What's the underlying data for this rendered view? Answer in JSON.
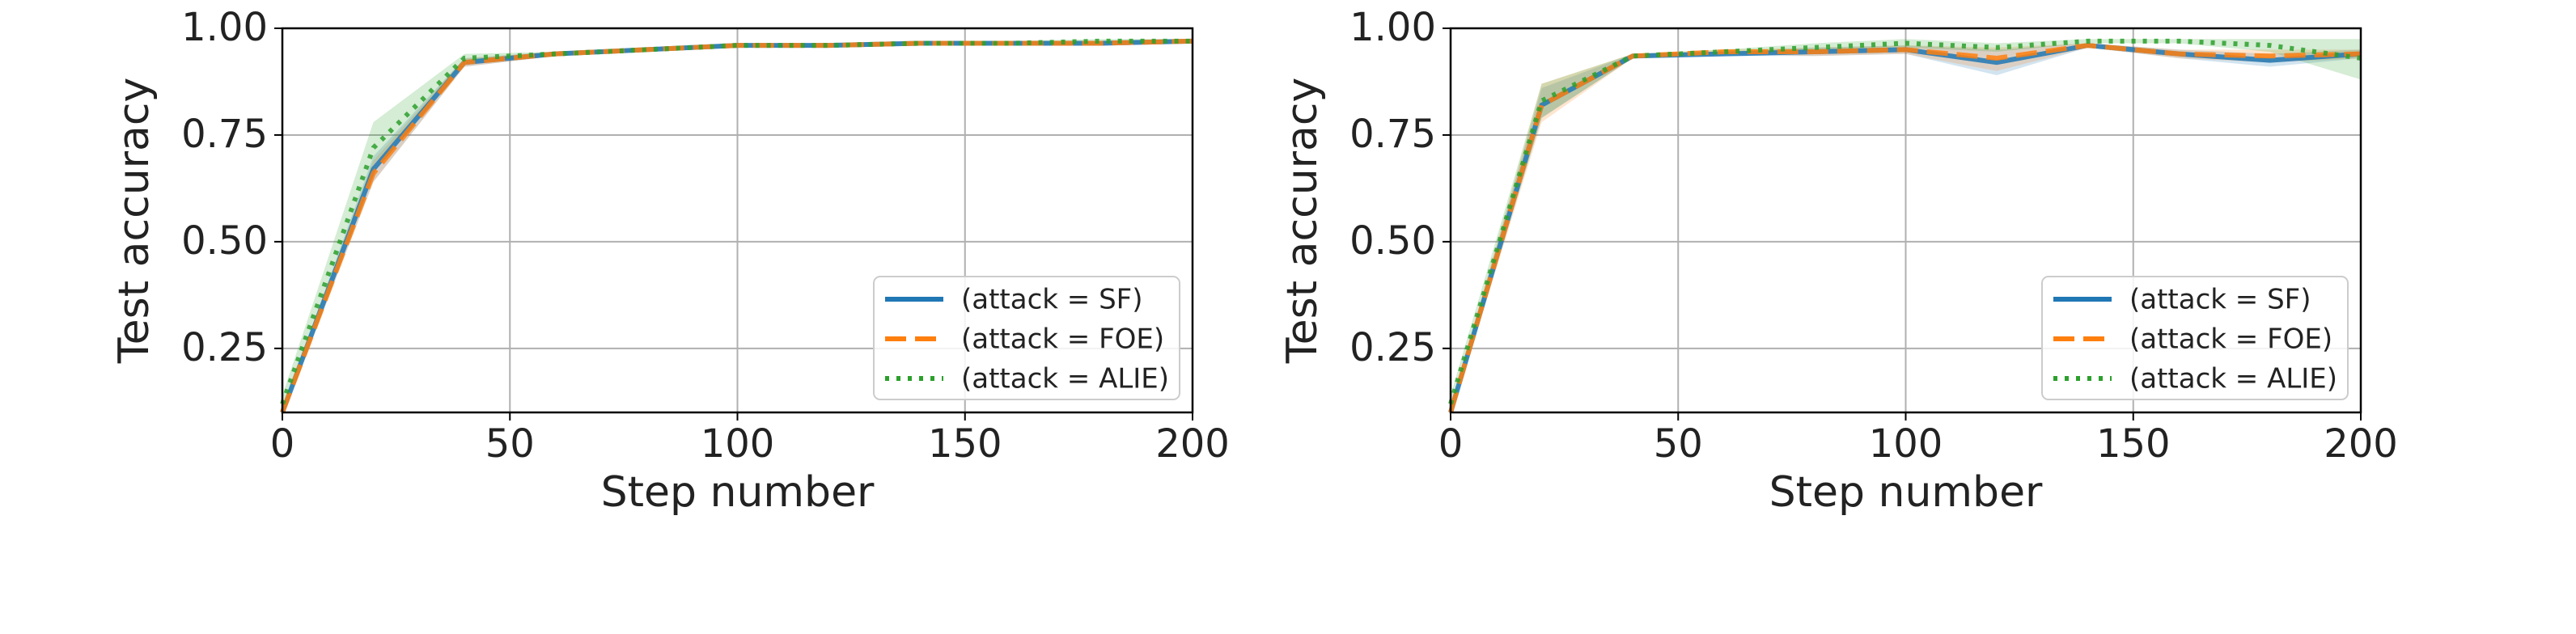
{
  "chart_data": [
    {
      "type": "line",
      "xlabel": "Step number",
      "ylabel": "Test accuracy",
      "xlim": [
        0,
        200
      ],
      "ylim": [
        0.1,
        1.0
      ],
      "xticks": [
        0,
        50,
        100,
        150,
        200
      ],
      "yticks": [
        0.25,
        {
          "value": 0.5,
          "label": "0.50"
        },
        0.75,
        {
          "value": 1.0,
          "label": "1.00"
        }
      ],
      "grid": true,
      "legend": "lower right",
      "x": [
        0,
        20,
        40,
        60,
        80,
        100,
        120,
        140,
        160,
        180,
        200
      ],
      "series": [
        {
          "name": "(attack = SF)",
          "color": "#1f77b4",
          "dash": "solid",
          "values": [
            0.1,
            0.67,
            0.92,
            0.94,
            0.95,
            0.96,
            0.96,
            0.965,
            0.965,
            0.965,
            0.97
          ],
          "lower": [
            0.09,
            0.64,
            0.91,
            0.935,
            0.945,
            0.955,
            0.955,
            0.96,
            0.96,
            0.96,
            0.965
          ],
          "upper": [
            0.11,
            0.7,
            0.93,
            0.945,
            0.955,
            0.965,
            0.965,
            0.97,
            0.97,
            0.97,
            0.975
          ]
        },
        {
          "name": "(attack = FOE)",
          "color": "#ff7f0e",
          "dash": "dashed",
          "values": [
            0.1,
            0.66,
            0.92,
            0.94,
            0.95,
            0.96,
            0.96,
            0.965,
            0.965,
            0.965,
            0.97
          ],
          "lower": [
            0.09,
            0.64,
            0.91,
            0.935,
            0.945,
            0.955,
            0.955,
            0.96,
            0.96,
            0.96,
            0.965
          ],
          "upper": [
            0.11,
            0.69,
            0.93,
            0.945,
            0.955,
            0.965,
            0.965,
            0.97,
            0.97,
            0.97,
            0.975
          ]
        },
        {
          "name": "(attack = ALIE)",
          "color": "#2ca02c",
          "dash": "dotted",
          "values": [
            0.12,
            0.72,
            0.93,
            0.94,
            0.95,
            0.96,
            0.96,
            0.965,
            0.965,
            0.97,
            0.97
          ],
          "lower": [
            0.1,
            0.68,
            0.92,
            0.935,
            0.945,
            0.955,
            0.955,
            0.96,
            0.96,
            0.965,
            0.965
          ],
          "upper": [
            0.14,
            0.78,
            0.94,
            0.945,
            0.955,
            0.965,
            0.965,
            0.97,
            0.97,
            0.975,
            0.975
          ]
        }
      ]
    },
    {
      "type": "line",
      "xlabel": "Step number",
      "ylabel": "Test accuracy",
      "xlim": [
        0,
        200
      ],
      "ylim": [
        0.1,
        1.0
      ],
      "xticks": [
        0,
        50,
        100,
        150,
        200
      ],
      "yticks": [
        0.25,
        {
          "value": 0.5,
          "label": "0.50"
        },
        0.75,
        {
          "value": 1.0,
          "label": "1.00"
        }
      ],
      "grid": true,
      "legend": "lower right",
      "x": [
        0,
        20,
        40,
        60,
        80,
        100,
        120,
        140,
        160,
        180,
        200
      ],
      "series": [
        {
          "name": "(attack = SF)",
          "color": "#1f77b4",
          "dash": "solid",
          "values": [
            0.1,
            0.82,
            0.935,
            0.94,
            0.945,
            0.95,
            0.92,
            0.96,
            0.94,
            0.925,
            0.94
          ],
          "lower": [
            0.09,
            0.79,
            0.93,
            0.935,
            0.935,
            0.94,
            0.89,
            0.955,
            0.93,
            0.91,
            0.93
          ],
          "upper": [
            0.11,
            0.86,
            0.94,
            0.945,
            0.955,
            0.96,
            0.95,
            0.965,
            0.95,
            0.94,
            0.95
          ]
        },
        {
          "name": "(attack = FOE)",
          "color": "#ff7f0e",
          "dash": "dashed",
          "values": [
            0.1,
            0.82,
            0.935,
            0.945,
            0.945,
            0.95,
            0.93,
            0.96,
            0.94,
            0.935,
            0.94
          ],
          "lower": [
            0.09,
            0.78,
            0.93,
            0.94,
            0.935,
            0.94,
            0.9,
            0.955,
            0.93,
            0.92,
            0.93
          ],
          "upper": [
            0.11,
            0.87,
            0.94,
            0.95,
            0.955,
            0.96,
            0.955,
            0.965,
            0.95,
            0.95,
            0.95
          ]
        },
        {
          "name": "(attack = ALIE)",
          "color": "#2ca02c",
          "dash": "dotted",
          "values": [
            0.12,
            0.83,
            0.935,
            0.945,
            0.955,
            0.965,
            0.955,
            0.97,
            0.97,
            0.96,
            0.93
          ],
          "lower": [
            0.1,
            0.79,
            0.93,
            0.94,
            0.945,
            0.955,
            0.945,
            0.965,
            0.965,
            0.945,
            0.88
          ],
          "upper": [
            0.14,
            0.87,
            0.94,
            0.95,
            0.965,
            0.975,
            0.965,
            0.975,
            0.975,
            0.975,
            0.975
          ]
        }
      ]
    }
  ]
}
